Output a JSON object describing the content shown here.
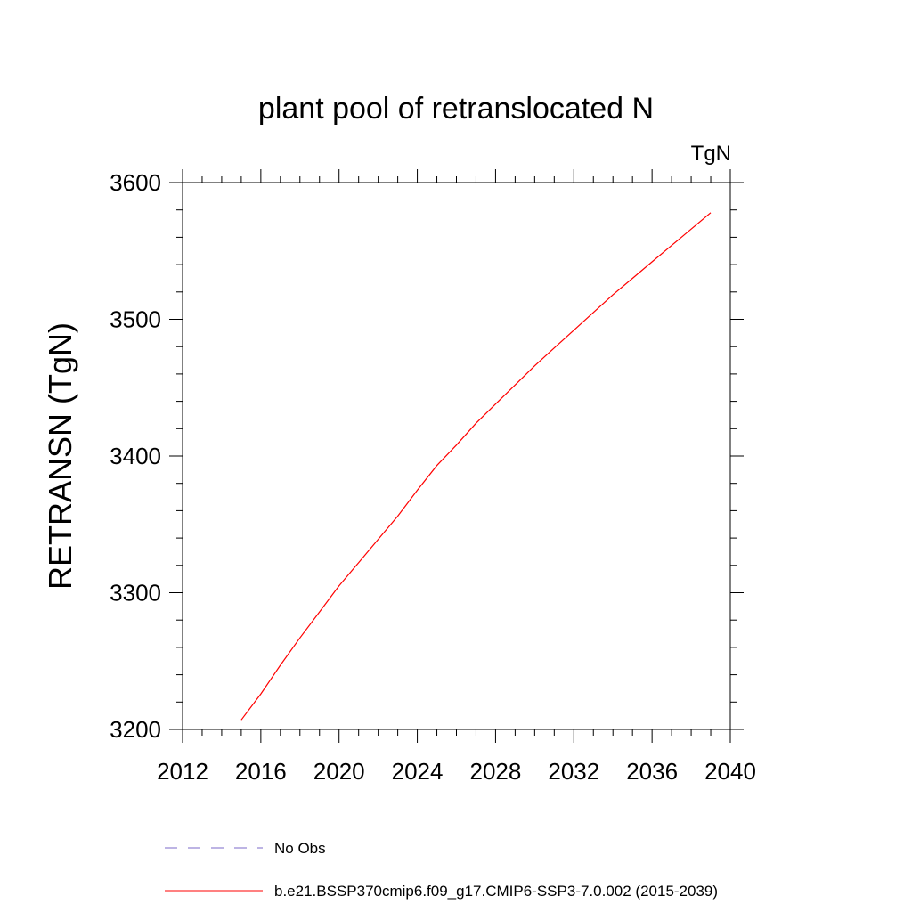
{
  "chart_data": {
    "type": "line",
    "title": "plant pool of retranslocated N",
    "units_label": "TgN",
    "ylabel": "RETRANSN  (TgN)",
    "xlabel": "",
    "xlim": [
      2012,
      2040
    ],
    "ylim": [
      3200,
      3600
    ],
    "x_ticks": [
      2012,
      2016,
      2020,
      2024,
      2028,
      2032,
      2036,
      2040
    ],
    "y_ticks": [
      3200,
      3300,
      3400,
      3500,
      3600
    ],
    "grid": false,
    "legend_position": "bottom",
    "series": [
      {
        "name": "b.e21.BSSP370cmip6.f09_g17.CMIP6-SSP3-7.0.002 (2015-2039)",
        "color": "#ff0000",
        "style": "solid",
        "x": [
          2015,
          2016,
          2017,
          2018,
          2019,
          2020,
          2021,
          2022,
          2023,
          2024,
          2025,
          2026,
          2027,
          2028,
          2029,
          2030,
          2031,
          2032,
          2033,
          2034,
          2035,
          2036,
          2037,
          2038,
          2039
        ],
        "y": [
          3207,
          3226,
          3247,
          3267,
          3286,
          3305,
          3322,
          3339,
          3356,
          3375,
          3393,
          3408,
          3424,
          3438,
          3452,
          3466,
          3479,
          3492,
          3505,
          3518,
          3530,
          3542,
          3554,
          3566,
          3578
        ]
      },
      {
        "name": "No Obs",
        "color": "#7b68c8",
        "style": "dashed",
        "x": [],
        "y": []
      }
    ]
  }
}
